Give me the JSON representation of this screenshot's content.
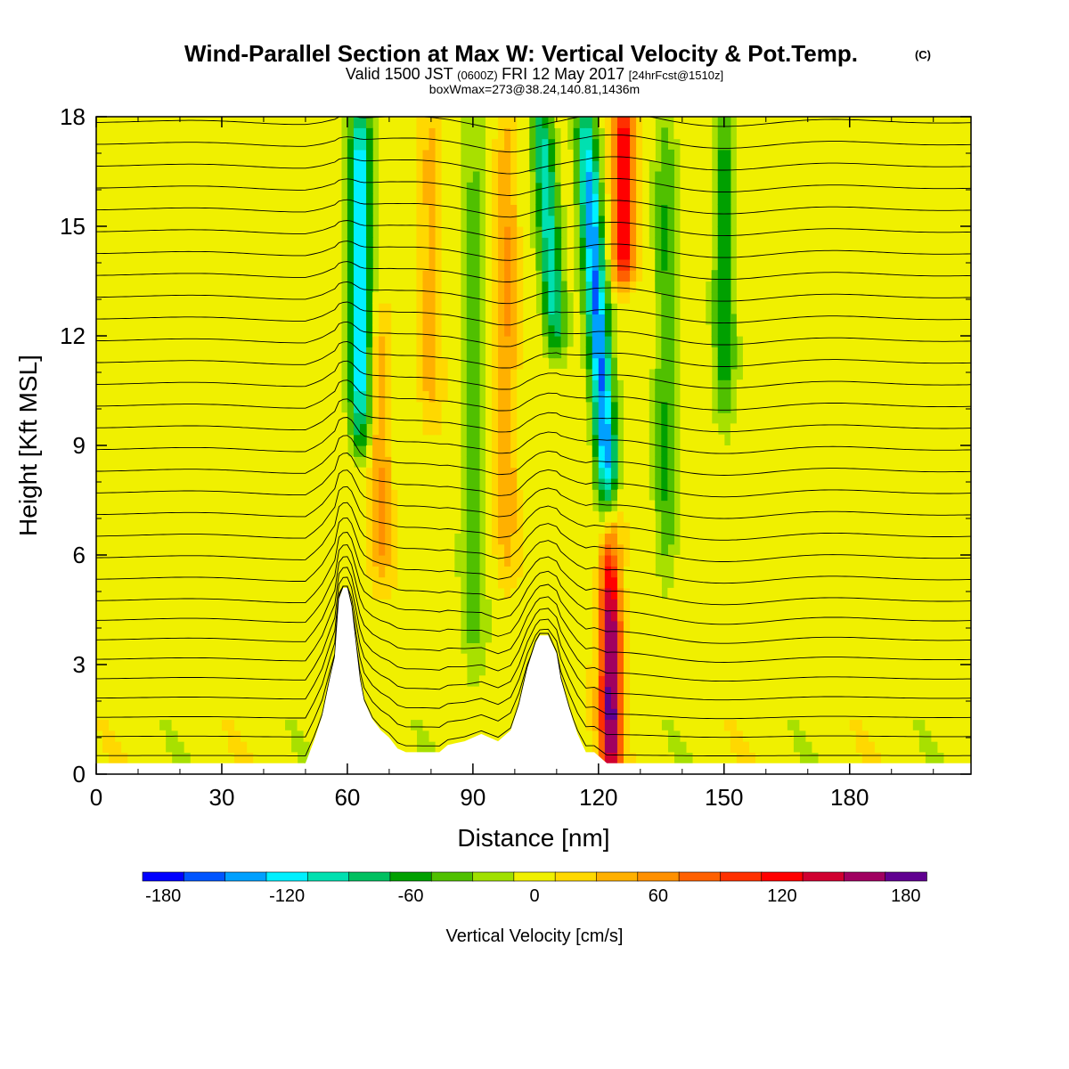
{
  "titles": {
    "main": "Wind-Parallel Section at Max W: Vertical Velocity & Pot.Temp.",
    "copyright": "(C)",
    "valid_prefix": "Valid 1500 JST",
    "valid_utc": "(0600Z)",
    "valid_date": "FRI 12 May 2017",
    "valid_fcst": "[24hrFcst@1510z]",
    "box": "boxWmax=273@38.24,140.81,1436m"
  },
  "chart_data": {
    "type": "heatmap",
    "xlabel": "Distance [nm]",
    "ylabel": "Height [Kft MSL]",
    "xlim": [
      0,
      209
    ],
    "ylim": [
      0,
      18
    ],
    "xticks": [
      "0",
      "30",
      "60",
      "90",
      "120",
      "150",
      "180"
    ],
    "xtick_values": [
      0,
      30,
      60,
      90,
      120,
      150,
      180
    ],
    "yticks": [
      "0",
      "3",
      "6",
      "9",
      "12",
      "15",
      "18"
    ],
    "ytick_values": [
      0,
      3,
      6,
      9,
      12,
      15,
      18
    ],
    "terrain_profile": [
      [
        50,
        0.3
      ],
      [
        52,
        0.9
      ],
      [
        54,
        1.6
      ],
      [
        56,
        2.7
      ],
      [
        57,
        3.2
      ],
      [
        58,
        4.8
      ],
      [
        59,
        5.1
      ],
      [
        60,
        5.1
      ],
      [
        61,
        4.6
      ],
      [
        62,
        3.6
      ],
      [
        63,
        2.6
      ],
      [
        64,
        2.0
      ],
      [
        66,
        1.5
      ],
      [
        68,
        1.2
      ],
      [
        70,
        1.0
      ],
      [
        72,
        0.7
      ],
      [
        74,
        0.6
      ],
      [
        82,
        0.6
      ],
      [
        84,
        0.8
      ],
      [
        88,
        0.9
      ],
      [
        90,
        1.0
      ],
      [
        92,
        1.1
      ],
      [
        96,
        0.9
      ],
      [
        99,
        1.2
      ],
      [
        101,
        1.9
      ],
      [
        103,
        2.9
      ],
      [
        105,
        3.6
      ],
      [
        106,
        3.8
      ],
      [
        108,
        3.8
      ],
      [
        110,
        3.3
      ],
      [
        111,
        2.6
      ],
      [
        113,
        1.8
      ],
      [
        115,
        1.1
      ],
      [
        117,
        0.6
      ],
      [
        119,
        0.6
      ],
      [
        122,
        0.3
      ]
    ],
    "features": [
      {
        "kind": "downdraft",
        "x": 63,
        "y_range": [
          9.5,
          18
        ],
        "w": -130
      },
      {
        "kind": "updraft",
        "x": 68,
        "y_range": [
          5.5,
          12
        ],
        "w": 50
      },
      {
        "kind": "updraft",
        "x": 80,
        "y_range": [
          10,
          18
        ],
        "w": 40
      },
      {
        "kind": "downdraft",
        "x": 90,
        "y_range": [
          2.5,
          18
        ],
        "w": -40
      },
      {
        "kind": "updraft",
        "x": 98,
        "y_range": [
          6,
          18
        ],
        "w": 50
      },
      {
        "kind": "downdraft",
        "x": 108,
        "y_range": [
          12,
          18
        ],
        "w": -100
      },
      {
        "kind": "downdraft",
        "x": 120,
        "y_range": [
          6,
          18
        ],
        "w": -150
      },
      {
        "kind": "updraft",
        "x": 123,
        "y_range": [
          0.3,
          7
        ],
        "w": 180
      },
      {
        "kind": "updraft",
        "x": 126,
        "y_range": [
          14,
          18
        ],
        "w": 130
      },
      {
        "kind": "downdraft",
        "x": 136,
        "y_range": [
          5.5,
          18
        ],
        "w": -50
      },
      {
        "kind": "downdraft",
        "x": 150,
        "y_range": [
          10,
          18
        ],
        "w": -60
      }
    ],
    "colorbar": {
      "label": "Vertical Velocity [cm/s]",
      "ticks": [
        "-180",
        "-120",
        "-60",
        "0",
        "60",
        "120",
        "180"
      ],
      "tick_values": [
        -180,
        -120,
        -60,
        0,
        60,
        120,
        180
      ],
      "range": [
        -190,
        190
      ],
      "colors": [
        "#0000ff",
        "#0055ff",
        "#00a0ff",
        "#00f0ff",
        "#00e0b0",
        "#00c060",
        "#00a000",
        "#50c000",
        "#a0e000",
        "#f0f000",
        "#ffd800",
        "#ffb000",
        "#ff9000",
        "#ff6000",
        "#ff3000",
        "#ff0000",
        "#d00030",
        "#a00060",
        "#600090"
      ]
    }
  }
}
